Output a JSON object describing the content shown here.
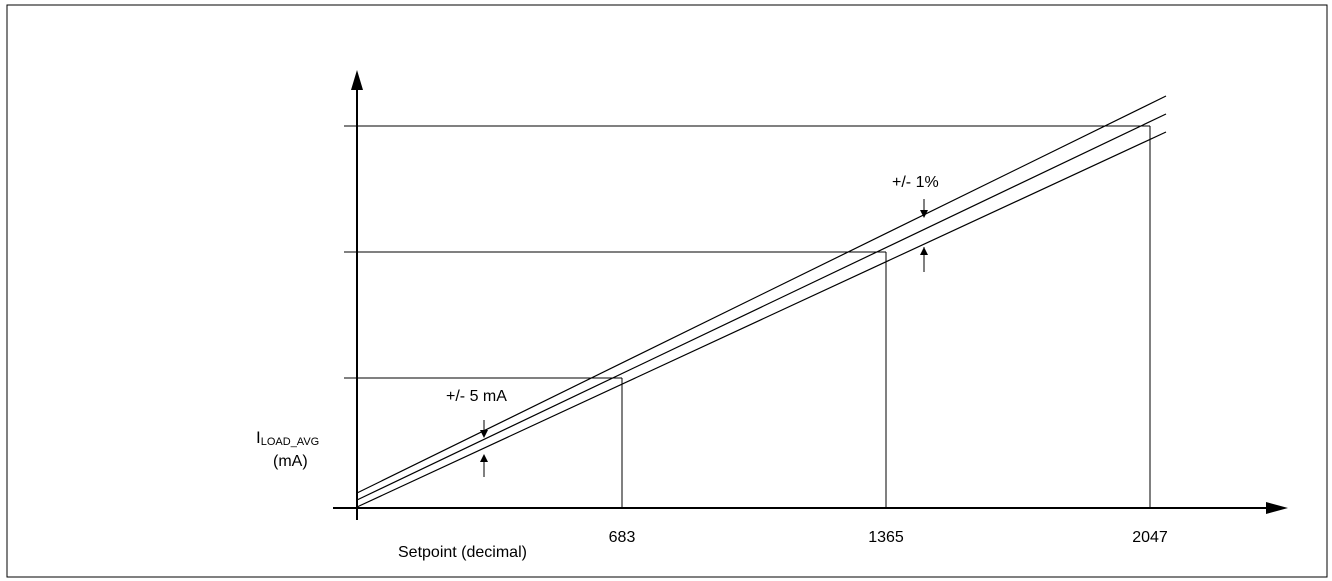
{
  "diagram": {
    "y_axis_label": {
      "main": "I",
      "subscript": "LOAD_AVG",
      "unit": "(mA)"
    },
    "x_axis_label": "Setpoint (decimal)",
    "x_ticks": [
      "683",
      "1365",
      "2047"
    ],
    "annotations": {
      "offset_band": "+/- 5 mA",
      "gain_band": "+/- 1%"
    }
  }
}
